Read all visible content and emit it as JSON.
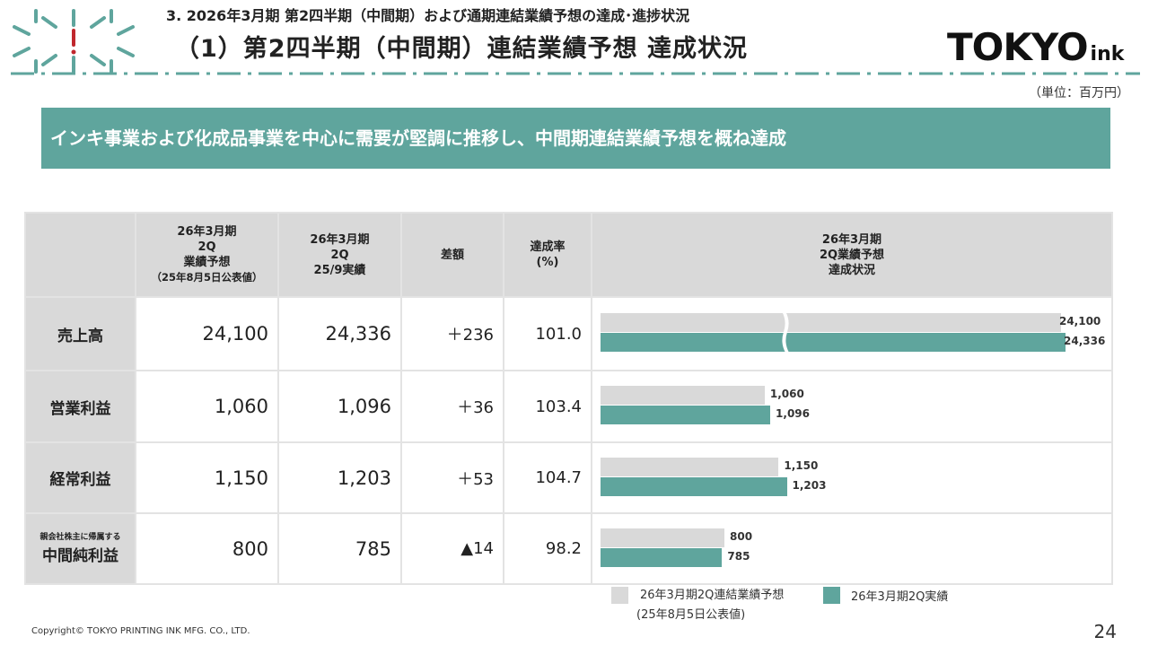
{
  "header": {
    "section": "3. 2026年3月期 第2四半期（中間期）および通期連結業績予想の達成･進捗状況",
    "title": "（1）第2四半期（中間期）連結業績予想 達成状況",
    "brand_main": "TOKYO",
    "brand_sub": "ink"
  },
  "unit": "（単位：百万円）",
  "banner": "インキ事業および化成品事業を中心に需要が堅調に推移し、中間期連結業績予想を概ね達成",
  "table": {
    "col_plan": [
      "26年3月期",
      "2Q",
      "業績予想",
      "（25年8月5日公表値）"
    ],
    "col_actual": [
      "26年3月期",
      "2Q",
      "25/9実績"
    ],
    "col_diff": "差額",
    "col_rate": [
      "達成率",
      "(%)"
    ],
    "col_chart": [
      "26年3月期",
      "2Q業績予想",
      "達成状況"
    ],
    "rows": [
      {
        "label": "売上高",
        "label_small": "",
        "plan": "24,100",
        "actual": "24,336",
        "diff": "＋236",
        "rate": "101.0"
      },
      {
        "label": "営業利益",
        "label_small": "",
        "plan": "1,060",
        "actual": "1,096",
        "diff": "＋36",
        "rate": "103.4"
      },
      {
        "label": "経常利益",
        "label_small": "",
        "plan": "1,150",
        "actual": "1,203",
        "diff": "＋53",
        "rate": "104.7"
      },
      {
        "label": "中間純利益",
        "label_small": "親会社株主に帰属する",
        "plan": "800",
        "actual": "785",
        "diff": "▲14",
        "rate": "98.2"
      }
    ]
  },
  "chart_data": {
    "type": "bar",
    "orientation": "horizontal",
    "axis_break": "売上高",
    "categories": [
      "売上高",
      "営業利益",
      "経常利益",
      "中間純利益"
    ],
    "series": [
      {
        "name": "26年3月期2Q連結業績予想（25年8月5日公表値）",
        "values": [
          24100,
          1060,
          1150,
          800
        ],
        "labels": [
          "24,100",
          "1,060",
          "1,150",
          "800"
        ]
      },
      {
        "name": "26年3月期2Q実績",
        "values": [
          24336,
          1096,
          1203,
          785
        ],
        "labels": [
          "24,336",
          "1,096",
          "1,203",
          "785"
        ]
      }
    ]
  },
  "legend": {
    "plan_line1": "26年3月期2Q連結業績予想",
    "plan_line2": "(25年8月5日公表値)",
    "actual": "26年3月期2Q実績"
  },
  "colors": {
    "teal": "#5fa59d",
    "gray": "#d9d9d9",
    "accent_red": "#c0272d"
  },
  "footer": {
    "copyright": "Copyright© TOKYO PRINTING INK MFG. CO., LTD.",
    "page": "24"
  }
}
